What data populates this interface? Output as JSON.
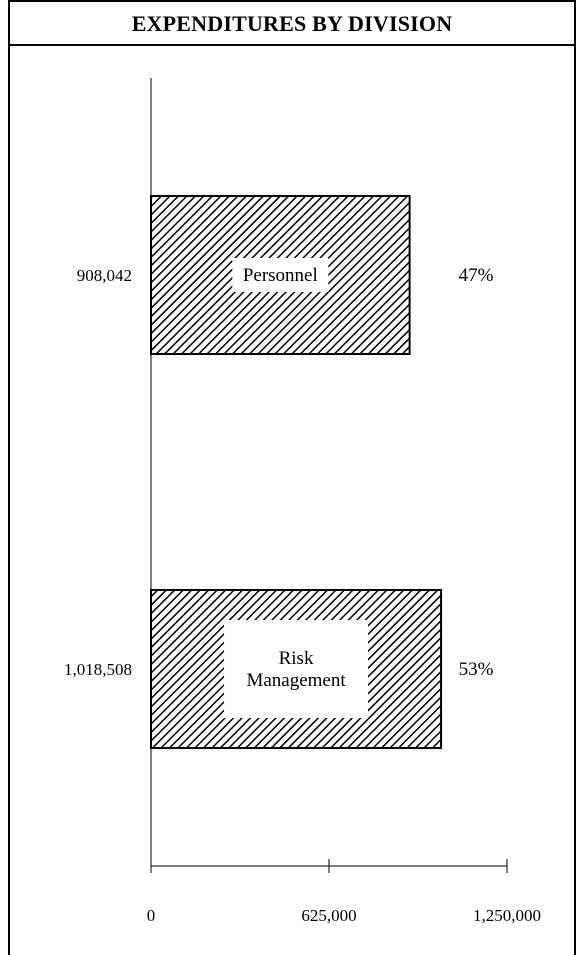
{
  "chart_data": {
    "type": "bar",
    "orientation": "horizontal",
    "title": "EXPENDITURES BY DIVISION",
    "categories": [
      "Personnel",
      "Risk Management"
    ],
    "category_lines": [
      [
        "Personnel"
      ],
      [
        "Risk",
        "Management"
      ]
    ],
    "values": [
      908042,
      1018508
    ],
    "value_labels": [
      "908,042",
      "1,018,508"
    ],
    "percent_labels": [
      "47%",
      "53%"
    ],
    "xlim": [
      0,
      1250000
    ],
    "xticks": [
      0,
      625000,
      1250000
    ],
    "xtick_labels": [
      "0",
      "625,000",
      "1,250,000"
    ],
    "xlabel": "",
    "ylabel": "",
    "grid": false,
    "legend": "none",
    "bar_fill": "diagonal-hatch",
    "colors": {
      "bar_stroke": "#000000",
      "hatch": "#000000",
      "label_box": "#ffffff"
    }
  }
}
